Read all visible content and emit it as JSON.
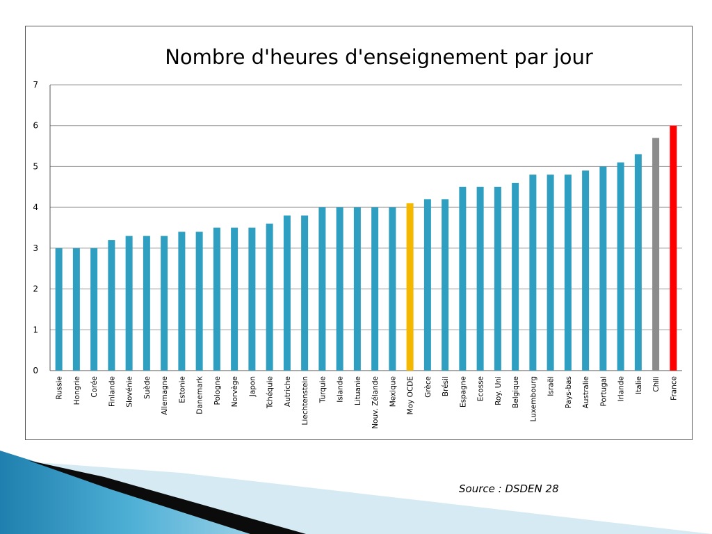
{
  "source": "Source : DSDEN 28",
  "colors": {
    "default_bar": "#2e9fc0",
    "gridline": "#9a9a9a",
    "axis": "#555555",
    "decor_dark": "#0b0b0b",
    "decor_blue": "#2a8fb8",
    "decor_light": "#d6eaf3"
  },
  "chart_data": {
    "type": "bar",
    "title": "Nombre d'heures d'enseignement par jour",
    "xlabel": "",
    "ylabel": "",
    "ylim": [
      0,
      7
    ],
    "yticks": [
      0,
      1,
      2,
      3,
      4,
      5,
      6,
      7
    ],
    "grid": true,
    "categories": [
      "Russie",
      "Hongrie",
      "Corée",
      "Finlande",
      "Slovénie",
      "Suède",
      "Allemagne",
      "Estonie",
      "Danemark",
      "Pologne",
      "Norvège",
      "Japon",
      "Tchéquie",
      "Autriche",
      "Liechtenstein",
      "Turquie",
      "Islande",
      "Lituanie",
      "Nouv. Zélande",
      "Mexique",
      "Moy OCDE",
      "Grèce",
      "Brésil",
      "Espagne",
      "Ecosse",
      "Roy. Uni",
      "Belgique",
      "Luxembourg",
      "Israël",
      "Pays-bas",
      "Australie",
      "Portugal",
      "Irlande",
      "Italie",
      "Chili",
      "France"
    ],
    "values": [
      3.0,
      3.0,
      3.0,
      3.2,
      3.3,
      3.3,
      3.3,
      3.4,
      3.4,
      3.5,
      3.5,
      3.5,
      3.6,
      3.8,
      3.8,
      4.0,
      4.0,
      4.0,
      4.0,
      4.0,
      4.1,
      4.2,
      4.2,
      4.5,
      4.5,
      4.5,
      4.6,
      4.8,
      4.8,
      4.8,
      4.9,
      5.0,
      5.1,
      5.3,
      5.7,
      6.0
    ],
    "highlights": {
      "Moy OCDE": "#f5b800",
      "Chili": "#8c8c8c",
      "France": "#ff0000"
    }
  }
}
